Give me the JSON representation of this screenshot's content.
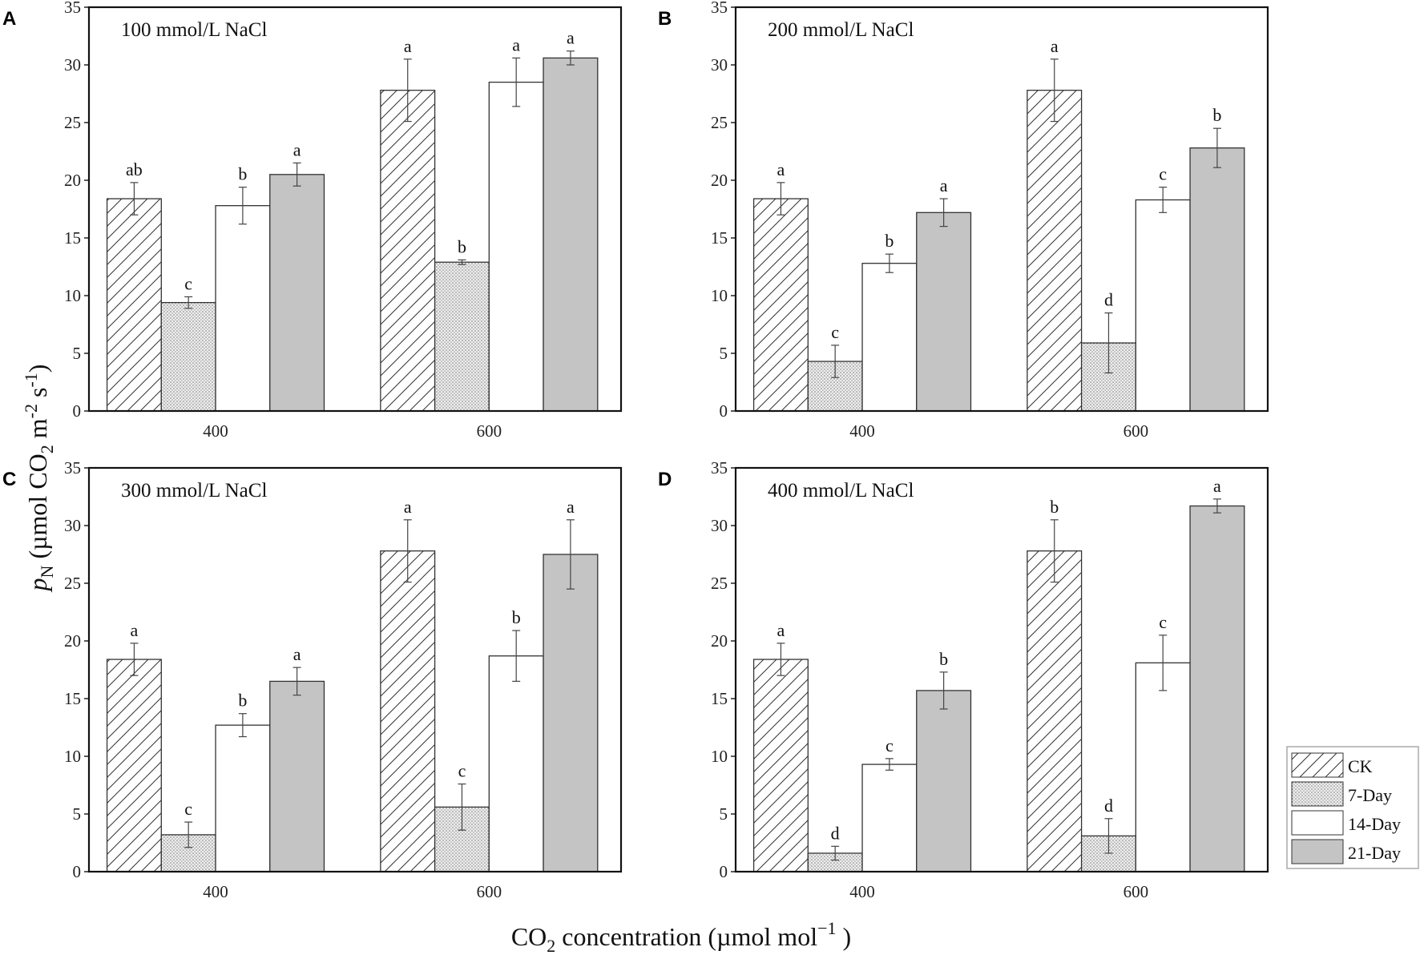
{
  "chart_data": [
    {
      "type": "bar",
      "panel": "A",
      "title": "100 mmol/L NaCl",
      "categories": [
        "400",
        "600"
      ],
      "ylim": [
        0,
        35
      ],
      "yticks": [
        0,
        5,
        10,
        15,
        20,
        25,
        30,
        35
      ],
      "series": [
        {
          "name": "CK",
          "values": [
            18.4,
            27.8
          ],
          "errors": [
            1.4,
            2.7
          ],
          "letters": [
            "ab",
            "a"
          ]
        },
        {
          "name": "7-Day",
          "values": [
            9.4,
            12.9
          ],
          "errors": [
            0.5,
            0.2
          ],
          "letters": [
            "c",
            "b"
          ]
        },
        {
          "name": "14-Day",
          "values": [
            17.8,
            28.5
          ],
          "errors": [
            1.6,
            2.1
          ],
          "letters": [
            "b",
            "a"
          ]
        },
        {
          "name": "21-Day",
          "values": [
            20.5,
            30.6
          ],
          "errors": [
            1.0,
            0.6
          ],
          "letters": [
            "a",
            "a"
          ]
        }
      ]
    },
    {
      "type": "bar",
      "panel": "B",
      "title": "200 mmol/L NaCl",
      "categories": [
        "400",
        "600"
      ],
      "ylim": [
        0,
        35
      ],
      "yticks": [
        0,
        5,
        10,
        15,
        20,
        25,
        30,
        35
      ],
      "series": [
        {
          "name": "CK",
          "values": [
            18.4,
            27.8
          ],
          "errors": [
            1.4,
            2.7
          ],
          "letters": [
            "a",
            "a"
          ]
        },
        {
          "name": "7-Day",
          "values": [
            4.3,
            5.9
          ],
          "errors": [
            1.4,
            2.6
          ],
          "letters": [
            "c",
            "d"
          ]
        },
        {
          "name": "14-Day",
          "values": [
            12.8,
            18.3
          ],
          "errors": [
            0.8,
            1.1
          ],
          "letters": [
            "b",
            "c"
          ]
        },
        {
          "name": "21-Day",
          "values": [
            17.2,
            22.8
          ],
          "errors": [
            1.2,
            1.7
          ],
          "letters": [
            "a",
            "b"
          ]
        }
      ]
    },
    {
      "type": "bar",
      "panel": "C",
      "title": "300 mmol/L NaCl",
      "categories": [
        "400",
        "600"
      ],
      "ylim": [
        0,
        35
      ],
      "yticks": [
        0,
        5,
        10,
        15,
        20,
        25,
        30,
        35
      ],
      "series": [
        {
          "name": "CK",
          "values": [
            18.4,
            27.8
          ],
          "errors": [
            1.4,
            2.7
          ],
          "letters": [
            "a",
            "a"
          ]
        },
        {
          "name": "7-Day",
          "values": [
            3.2,
            5.6
          ],
          "errors": [
            1.1,
            2.0
          ],
          "letters": [
            "c",
            "c"
          ]
        },
        {
          "name": "14-Day",
          "values": [
            12.7,
            18.7
          ],
          "errors": [
            1.0,
            2.2
          ],
          "letters": [
            "b",
            "b"
          ]
        },
        {
          "name": "21-Day",
          "values": [
            16.5,
            27.5
          ],
          "errors": [
            1.2,
            3.0
          ],
          "letters": [
            "a",
            "a"
          ]
        }
      ]
    },
    {
      "type": "bar",
      "panel": "D",
      "title": "400 mmol/L NaCl",
      "categories": [
        "400",
        "600"
      ],
      "ylim": [
        0,
        35
      ],
      "yticks": [
        0,
        5,
        10,
        15,
        20,
        25,
        30,
        35
      ],
      "series": [
        {
          "name": "CK",
          "values": [
            18.4,
            27.8
          ],
          "errors": [
            1.4,
            2.7
          ],
          "letters": [
            "a",
            "b"
          ]
        },
        {
          "name": "7-Day",
          "values": [
            1.6,
            3.1
          ],
          "errors": [
            0.6,
            1.5
          ],
          "letters": [
            "d",
            "d"
          ]
        },
        {
          "name": "14-Day",
          "values": [
            9.3,
            18.1
          ],
          "errors": [
            0.5,
            2.4
          ],
          "letters": [
            "c",
            "c"
          ]
        },
        {
          "name": "21-Day",
          "values": [
            15.7,
            31.7
          ],
          "errors": [
            1.6,
            0.6
          ],
          "letters": [
            "b",
            "a"
          ]
        }
      ]
    }
  ],
  "ylabel": {
    "main": "p",
    "sub": "N",
    "unit": " (µmol CO",
    "unit_sub": "2",
    "unit_mid": " m",
    "unit_sup1": "-2",
    "unit_s": " s",
    "unit_sup2": "-1",
    "unit_end": ")"
  },
  "xlabel": {
    "pre": "CO",
    "sub": "2",
    "mid": " concentration (µmol mol",
    "sup": "−1",
    "end": " )"
  },
  "legend": [
    "CK",
    "7-Day",
    "14-Day",
    "21-Day"
  ],
  "colors": {
    "grey_fill": "#c4c4c4",
    "outline": "#222222"
  }
}
